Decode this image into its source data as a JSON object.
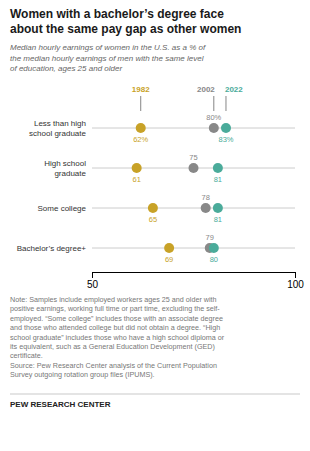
{
  "chart_data": {
    "type": "dot",
    "title": "Women with a bachelor’s degree face\nabout the same pay gap as other women",
    "subtitle": "Median hourly earnings of women in the U.S. as a % of\nthe median hourly earnings of men with the same level\nof education, ages 25 and older",
    "categories": [
      "Less than high\nschool graduate",
      "High school\ngraduate",
      "Some college",
      "Bachelor’s degree+"
    ],
    "series": [
      {
        "name": "1982",
        "color": "#c8a227",
        "values": [
          62,
          61,
          65,
          69
        ],
        "value_labels": [
          "62%",
          "61",
          "65",
          "69"
        ]
      },
      {
        "name": "2002",
        "color": "#888888",
        "values": [
          80,
          75,
          78,
          79
        ],
        "value_labels": [
          "80%",
          "75",
          "78",
          "79"
        ]
      },
      {
        "name": "2022",
        "color": "#4aab9a",
        "values": [
          83,
          81,
          81,
          80
        ],
        "value_labels": [
          "83%",
          "81",
          "81",
          "80"
        ]
      }
    ],
    "xlim": [
      50,
      100
    ],
    "xticks": [
      50,
      100
    ],
    "grid": false,
    "data_labels": true,
    "annotations": [
      "Note: Samples include employed workers ages 25 and older with\npositive earnings, working full time or part time, excluding the self-\nemployed. “Some college” includes those with an associate degree\nand those who attended college but did not obtain a degree. “High\nschool graduate” includes those who have a high school diploma or\nits equivalent, such as a General Education Development (GED)\ncertificate.\nSource: Pew Research Center analysis of the Current Population\nSurvey outgoing rotation group files (IPUMS).",
      "PEW RESEARCH CENTER"
    ]
  }
}
